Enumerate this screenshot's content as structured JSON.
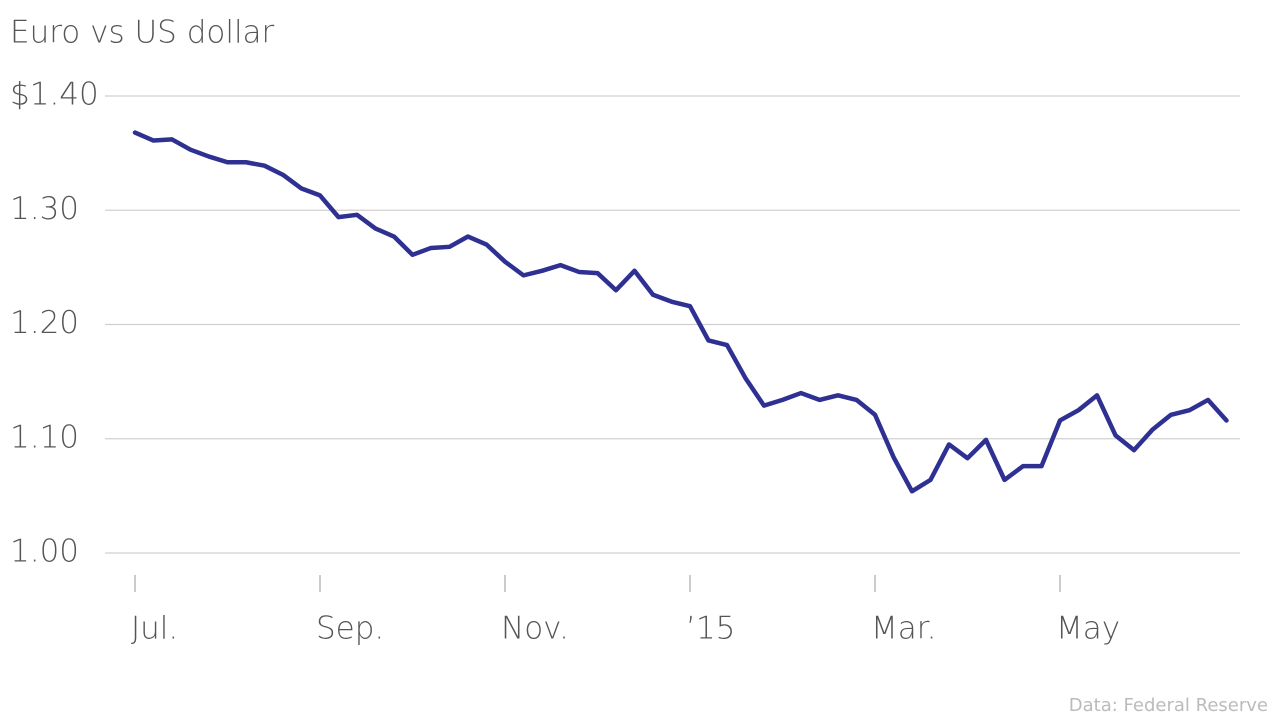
{
  "chart_data": {
    "type": "line",
    "title": "Euro vs US dollar",
    "source": "Data: Federal Reserve",
    "categories": [
      "Jul.",
      null,
      null,
      null,
      null,
      null,
      null,
      null,
      null,
      null,
      "Sep.",
      null,
      null,
      null,
      null,
      null,
      null,
      null,
      null,
      null,
      "Nov.",
      null,
      null,
      null,
      null,
      null,
      null,
      null,
      null,
      null,
      "’15",
      null,
      null,
      null,
      null,
      null,
      null,
      null,
      null,
      null,
      "Mar.",
      null,
      null,
      null,
      null,
      null,
      null,
      null,
      null,
      null,
      "May",
      null,
      null,
      null,
      null,
      null,
      null,
      null,
      null,
      null
    ],
    "values": [
      1.368,
      1.361,
      1.362,
      1.353,
      1.347,
      1.342,
      1.342,
      1.339,
      1.331,
      1.319,
      1.313,
      1.294,
      1.296,
      1.284,
      1.277,
      1.261,
      1.267,
      1.268,
      1.277,
      1.27,
      1.255,
      1.243,
      1.247,
      1.252,
      1.246,
      1.245,
      1.23,
      1.247,
      1.226,
      1.22,
      1.216,
      1.186,
      1.182,
      1.153,
      1.129,
      1.134,
      1.14,
      1.134,
      1.138,
      1.134,
      1.121,
      1.084,
      1.054,
      1.064,
      1.095,
      1.083,
      1.099,
      1.064,
      1.076,
      1.076,
      1.116,
      1.125,
      1.138,
      1.103,
      1.09,
      1.108,
      1.121,
      1.125,
      1.134,
      1.116
    ],
    "color": "#2e3192",
    "ylim": [
      1.0,
      1.4
    ],
    "yticks": [
      {
        "value": 1.0,
        "label": "1.00"
      },
      {
        "value": 1.1,
        "label": "1.10"
      },
      {
        "value": 1.2,
        "label": "1.20"
      },
      {
        "value": 1.3,
        "label": "1.30"
      },
      {
        "value": 1.4,
        "label": "$1.40"
      }
    ],
    "grid": true
  }
}
